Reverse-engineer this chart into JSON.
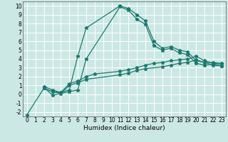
{
  "title": "",
  "xlabel": "Humidex (Indice chaleur)",
  "bg_color": "#cce8e4",
  "grid_color": "#ffffff",
  "line_color": "#1a7a6e",
  "xlim": [
    -0.5,
    23.5
  ],
  "ylim": [
    -2.5,
    10.5
  ],
  "xticks": [
    0,
    1,
    2,
    3,
    4,
    5,
    6,
    7,
    8,
    9,
    10,
    11,
    12,
    13,
    14,
    15,
    16,
    17,
    18,
    19,
    20,
    21,
    22,
    23
  ],
  "yticks": [
    -2,
    -1,
    0,
    1,
    2,
    3,
    4,
    5,
    6,
    7,
    8,
    9,
    10
  ],
  "line1_x": [
    0,
    2,
    3,
    4,
    5,
    6,
    7,
    11,
    12,
    13,
    14,
    15,
    16,
    17,
    18,
    19,
    20,
    21,
    22,
    23
  ],
  "line1_y": [
    -2.3,
    0.7,
    0.3,
    0.2,
    0.5,
    4.3,
    7.5,
    10.0,
    9.7,
    9.0,
    8.3,
    6.0,
    5.2,
    5.4,
    5.0,
    4.8,
    3.8,
    3.6,
    3.6,
    3.5
  ],
  "line2_x": [
    2,
    3,
    5,
    6,
    7,
    11,
    12,
    13,
    14,
    15,
    16,
    17,
    18,
    19,
    20,
    21,
    22,
    23
  ],
  "line2_y": [
    0.8,
    -0.1,
    0.3,
    0.5,
    4.0,
    9.9,
    9.5,
    8.5,
    7.9,
    5.5,
    5.0,
    5.2,
    4.7,
    4.5,
    3.5,
    3.3,
    3.4,
    3.2
  ],
  "line3_x": [
    2,
    3,
    4,
    5,
    6,
    7,
    8,
    11,
    12,
    13,
    14,
    15,
    16,
    17,
    18,
    19,
    20,
    21,
    22,
    23
  ],
  "line3_y": [
    0.9,
    0.5,
    0.2,
    1.2,
    1.5,
    2.0,
    2.3,
    2.6,
    2.8,
    3.0,
    3.3,
    3.5,
    3.6,
    3.8,
    3.9,
    4.0,
    4.3,
    3.8,
    3.5,
    3.4
  ],
  "line4_x": [
    2,
    3,
    4,
    5,
    6,
    7,
    11,
    12,
    13,
    14,
    16,
    17,
    18,
    19,
    20,
    21,
    22,
    23
  ],
  "line4_y": [
    0.7,
    0.3,
    0.1,
    1.0,
    1.3,
    1.7,
    2.2,
    2.4,
    2.7,
    2.9,
    3.1,
    3.3,
    3.5,
    3.6,
    3.9,
    3.6,
    3.3,
    3.2
  ],
  "xlabel_fontsize": 6.5,
  "tick_fontsize": 5.5
}
